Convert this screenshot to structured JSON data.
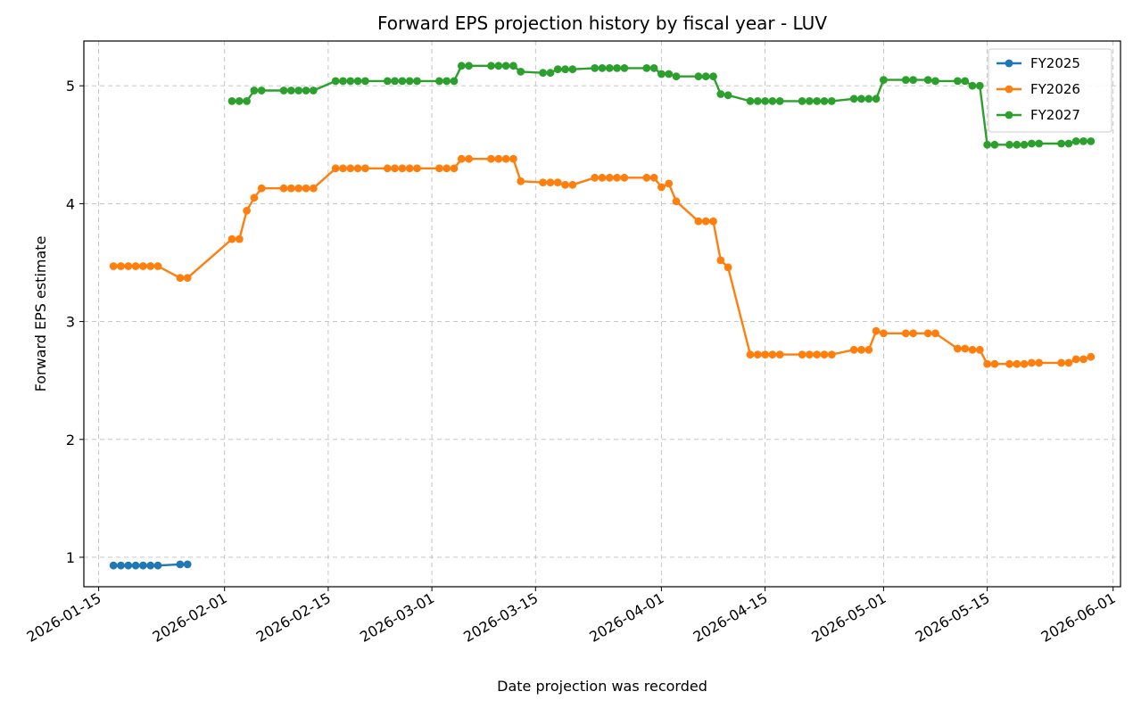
{
  "chart_data": {
    "type": "line",
    "title": "Forward EPS projection history by fiscal year - LUV",
    "xlabel": "Date projection was recorded",
    "ylabel": "Forward EPS estimate",
    "x_axis": "date",
    "xlim": [
      "2026-01-13",
      "2026-06-02"
    ],
    "ylim": [
      0.75,
      5.38
    ],
    "x_ticks": [
      "2026-01-15",
      "2026-02-01",
      "2026-02-15",
      "2026-03-01",
      "2026-03-15",
      "2026-04-01",
      "2026-04-15",
      "2026-05-01",
      "2026-05-15",
      "2026-06-01"
    ],
    "y_ticks": [
      1,
      2,
      3,
      4,
      5
    ],
    "grid": true,
    "legend_position": "top-right",
    "series": [
      {
        "name": "FY2025",
        "color": "#1f77b4",
        "points": [
          [
            "2026-01-17",
            0.93
          ],
          [
            "2026-01-18",
            0.93
          ],
          [
            "2026-01-19",
            0.93
          ],
          [
            "2026-01-20",
            0.93
          ],
          [
            "2026-01-21",
            0.93
          ],
          [
            "2026-01-22",
            0.93
          ],
          [
            "2026-01-23",
            0.93
          ],
          [
            "2026-01-26",
            0.94
          ],
          [
            "2026-01-27",
            0.94
          ]
        ]
      },
      {
        "name": "FY2026",
        "color": "#ff7f0e",
        "points": [
          [
            "2026-01-17",
            3.47
          ],
          [
            "2026-01-18",
            3.47
          ],
          [
            "2026-01-19",
            3.47
          ],
          [
            "2026-01-20",
            3.47
          ],
          [
            "2026-01-21",
            3.47
          ],
          [
            "2026-01-22",
            3.47
          ],
          [
            "2026-01-23",
            3.47
          ],
          [
            "2026-01-26",
            3.37
          ],
          [
            "2026-01-27",
            3.37
          ],
          [
            "2026-02-02",
            3.7
          ],
          [
            "2026-02-03",
            3.7
          ],
          [
            "2026-02-04",
            3.94
          ],
          [
            "2026-02-05",
            4.05
          ],
          [
            "2026-02-06",
            4.13
          ],
          [
            "2026-02-09",
            4.13
          ],
          [
            "2026-02-10",
            4.13
          ],
          [
            "2026-02-11",
            4.13
          ],
          [
            "2026-02-12",
            4.13
          ],
          [
            "2026-02-13",
            4.13
          ],
          [
            "2026-02-16",
            4.3
          ],
          [
            "2026-02-17",
            4.3
          ],
          [
            "2026-02-18",
            4.3
          ],
          [
            "2026-02-19",
            4.3
          ],
          [
            "2026-02-20",
            4.3
          ],
          [
            "2026-02-23",
            4.3
          ],
          [
            "2026-02-24",
            4.3
          ],
          [
            "2026-02-25",
            4.3
          ],
          [
            "2026-02-26",
            4.3
          ],
          [
            "2026-02-27",
            4.3
          ],
          [
            "2026-03-02",
            4.3
          ],
          [
            "2026-03-03",
            4.3
          ],
          [
            "2026-03-04",
            4.3
          ],
          [
            "2026-03-05",
            4.38
          ],
          [
            "2026-03-06",
            4.38
          ],
          [
            "2026-03-09",
            4.38
          ],
          [
            "2026-03-10",
            4.38
          ],
          [
            "2026-03-11",
            4.38
          ],
          [
            "2026-03-12",
            4.38
          ],
          [
            "2026-03-13",
            4.19
          ],
          [
            "2026-03-16",
            4.18
          ],
          [
            "2026-03-17",
            4.18
          ],
          [
            "2026-03-18",
            4.18
          ],
          [
            "2026-03-19",
            4.16
          ],
          [
            "2026-03-20",
            4.16
          ],
          [
            "2026-03-23",
            4.22
          ],
          [
            "2026-03-24",
            4.22
          ],
          [
            "2026-03-25",
            4.22
          ],
          [
            "2026-03-26",
            4.22
          ],
          [
            "2026-03-27",
            4.22
          ],
          [
            "2026-03-30",
            4.22
          ],
          [
            "2026-03-31",
            4.22
          ],
          [
            "2026-04-01",
            4.14
          ],
          [
            "2026-04-02",
            4.17
          ],
          [
            "2026-04-03",
            4.02
          ],
          [
            "2026-04-06",
            3.85
          ],
          [
            "2026-04-07",
            3.85
          ],
          [
            "2026-04-08",
            3.85
          ],
          [
            "2026-04-09",
            3.52
          ],
          [
            "2026-04-10",
            3.46
          ],
          [
            "2026-04-13",
            2.72
          ],
          [
            "2026-04-14",
            2.72
          ],
          [
            "2026-04-15",
            2.72
          ],
          [
            "2026-04-16",
            2.72
          ],
          [
            "2026-04-17",
            2.72
          ],
          [
            "2026-04-20",
            2.72
          ],
          [
            "2026-04-21",
            2.72
          ],
          [
            "2026-04-22",
            2.72
          ],
          [
            "2026-04-23",
            2.72
          ],
          [
            "2026-04-24",
            2.72
          ],
          [
            "2026-04-27",
            2.76
          ],
          [
            "2026-04-28",
            2.76
          ],
          [
            "2026-04-29",
            2.76
          ],
          [
            "2026-04-30",
            2.92
          ],
          [
            "2026-05-01",
            2.9
          ],
          [
            "2026-05-04",
            2.9
          ],
          [
            "2026-05-05",
            2.9
          ],
          [
            "2026-05-07",
            2.9
          ],
          [
            "2026-05-08",
            2.9
          ],
          [
            "2026-05-11",
            2.77
          ],
          [
            "2026-05-12",
            2.77
          ],
          [
            "2026-05-13",
            2.76
          ],
          [
            "2026-05-14",
            2.76
          ],
          [
            "2026-05-15",
            2.64
          ],
          [
            "2026-05-16",
            2.64
          ],
          [
            "2026-05-18",
            2.64
          ],
          [
            "2026-05-19",
            2.64
          ],
          [
            "2026-05-20",
            2.64
          ],
          [
            "2026-05-21",
            2.65
          ],
          [
            "2026-05-22",
            2.65
          ],
          [
            "2026-05-25",
            2.65
          ],
          [
            "2026-05-26",
            2.65
          ],
          [
            "2026-05-27",
            2.68
          ],
          [
            "2026-05-28",
            2.68
          ],
          [
            "2026-05-29",
            2.7
          ]
        ]
      },
      {
        "name": "FY2027",
        "color": "#2ca02c",
        "points": [
          [
            "2026-02-02",
            4.87
          ],
          [
            "2026-02-03",
            4.87
          ],
          [
            "2026-02-04",
            4.87
          ],
          [
            "2026-02-05",
            4.96
          ],
          [
            "2026-02-06",
            4.96
          ],
          [
            "2026-02-09",
            4.96
          ],
          [
            "2026-02-10",
            4.96
          ],
          [
            "2026-02-11",
            4.96
          ],
          [
            "2026-02-12",
            4.96
          ],
          [
            "2026-02-13",
            4.96
          ],
          [
            "2026-02-16",
            5.04
          ],
          [
            "2026-02-17",
            5.04
          ],
          [
            "2026-02-18",
            5.04
          ],
          [
            "2026-02-19",
            5.04
          ],
          [
            "2026-02-20",
            5.04
          ],
          [
            "2026-02-23",
            5.04
          ],
          [
            "2026-02-24",
            5.04
          ],
          [
            "2026-02-25",
            5.04
          ],
          [
            "2026-02-26",
            5.04
          ],
          [
            "2026-02-27",
            5.04
          ],
          [
            "2026-03-02",
            5.04
          ],
          [
            "2026-03-03",
            5.04
          ],
          [
            "2026-03-04",
            5.04
          ],
          [
            "2026-03-05",
            5.17
          ],
          [
            "2026-03-06",
            5.17
          ],
          [
            "2026-03-09",
            5.17
          ],
          [
            "2026-03-10",
            5.17
          ],
          [
            "2026-03-11",
            5.17
          ],
          [
            "2026-03-12",
            5.17
          ],
          [
            "2026-03-13",
            5.12
          ],
          [
            "2026-03-16",
            5.11
          ],
          [
            "2026-03-17",
            5.11
          ],
          [
            "2026-03-18",
            5.14
          ],
          [
            "2026-03-19",
            5.14
          ],
          [
            "2026-03-20",
            5.14
          ],
          [
            "2026-03-23",
            5.15
          ],
          [
            "2026-03-24",
            5.15
          ],
          [
            "2026-03-25",
            5.15
          ],
          [
            "2026-03-26",
            5.15
          ],
          [
            "2026-03-27",
            5.15
          ],
          [
            "2026-03-30",
            5.15
          ],
          [
            "2026-03-31",
            5.15
          ],
          [
            "2026-04-01",
            5.1
          ],
          [
            "2026-04-02",
            5.1
          ],
          [
            "2026-04-03",
            5.08
          ],
          [
            "2026-04-06",
            5.08
          ],
          [
            "2026-04-07",
            5.08
          ],
          [
            "2026-04-08",
            5.08
          ],
          [
            "2026-04-09",
            4.93
          ],
          [
            "2026-04-10",
            4.92
          ],
          [
            "2026-04-13",
            4.87
          ],
          [
            "2026-04-14",
            4.87
          ],
          [
            "2026-04-15",
            4.87
          ],
          [
            "2026-04-16",
            4.87
          ],
          [
            "2026-04-17",
            4.87
          ],
          [
            "2026-04-20",
            4.87
          ],
          [
            "2026-04-21",
            4.87
          ],
          [
            "2026-04-22",
            4.87
          ],
          [
            "2026-04-23",
            4.87
          ],
          [
            "2026-04-24",
            4.87
          ],
          [
            "2026-04-27",
            4.89
          ],
          [
            "2026-04-28",
            4.89
          ],
          [
            "2026-04-29",
            4.89
          ],
          [
            "2026-04-30",
            4.89
          ],
          [
            "2026-05-01",
            5.05
          ],
          [
            "2026-05-04",
            5.05
          ],
          [
            "2026-05-05",
            5.05
          ],
          [
            "2026-05-07",
            5.05
          ],
          [
            "2026-05-08",
            5.04
          ],
          [
            "2026-05-11",
            5.04
          ],
          [
            "2026-05-12",
            5.04
          ],
          [
            "2026-05-13",
            5.0
          ],
          [
            "2026-05-14",
            5.0
          ],
          [
            "2026-05-15",
            4.5
          ],
          [
            "2026-05-16",
            4.5
          ],
          [
            "2026-05-18",
            4.5
          ],
          [
            "2026-05-19",
            4.5
          ],
          [
            "2026-05-20",
            4.5
          ],
          [
            "2026-05-21",
            4.51
          ],
          [
            "2026-05-22",
            4.51
          ],
          [
            "2026-05-25",
            4.51
          ],
          [
            "2026-05-26",
            4.51
          ],
          [
            "2026-05-27",
            4.53
          ],
          [
            "2026-05-28",
            4.53
          ],
          [
            "2026-05-29",
            4.53
          ]
        ]
      }
    ]
  }
}
